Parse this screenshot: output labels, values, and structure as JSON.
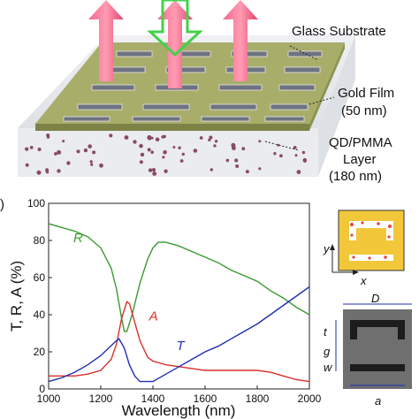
{
  "diagram": {
    "labels": {
      "glass": "Glass Substrate",
      "gold": "Gold Film",
      "gold_thickness": "(50 nm)",
      "qd_line1": "QD/PMMA",
      "qd_line2": "Layer",
      "qd_thickness": "(180 nm)"
    }
  },
  "panel_b_label": ")",
  "inset": {
    "axis_y": "y",
    "axis_x": "x",
    "dims": {
      "D": "D",
      "t": "t",
      "g": "g",
      "w": "w",
      "a": "a"
    }
  },
  "chart_data": {
    "type": "line",
    "xlabel": "Wavelength (nm)",
    "ylabel": "T, R, A (%)",
    "xlim": [
      1000,
      2000
    ],
    "ylim": [
      0,
      100
    ],
    "xticks": [
      1000,
      1200,
      1400,
      1600,
      1800,
      2000
    ],
    "yticks": [
      0,
      20,
      40,
      60,
      80,
      100
    ],
    "series": [
      {
        "name": "R",
        "color": "#3a9a2e",
        "x": [
          1000,
          1050,
          1100,
          1150,
          1200,
          1240,
          1260,
          1280,
          1290,
          1300,
          1320,
          1350,
          1380,
          1400,
          1420,
          1450,
          1500,
          1550,
          1600,
          1650,
          1700,
          1750,
          1800,
          1850,
          1900,
          1950,
          2000
        ],
        "y": [
          89,
          87,
          85,
          82,
          76,
          65,
          54,
          38,
          31,
          31,
          40,
          57,
          70,
          76,
          79,
          79,
          77,
          74,
          71,
          68,
          64,
          61,
          58,
          53,
          49,
          44,
          40
        ]
      },
      {
        "name": "A",
        "color": "#d9302a",
        "x": [
          1000,
          1050,
          1100,
          1150,
          1200,
          1240,
          1260,
          1280,
          1300,
          1310,
          1330,
          1350,
          1380,
          1400,
          1450,
          1500,
          1550,
          1600,
          1650,
          1700,
          1750,
          1800,
          1850,
          1900,
          1950,
          2000
        ],
        "y": [
          7,
          7,
          7,
          8,
          10,
          16,
          24,
          38,
          47,
          46,
          36,
          26,
          17,
          15,
          13,
          12,
          11,
          10,
          10,
          10,
          10,
          10,
          9,
          7,
          5,
          4
        ]
      },
      {
        "name": "T",
        "color": "#1f2fb0",
        "x": [
          1000,
          1050,
          1100,
          1150,
          1200,
          1230,
          1260,
          1270,
          1290,
          1310,
          1330,
          1350,
          1400,
          1450,
          1500,
          1550,
          1600,
          1650,
          1700,
          1750,
          1800,
          1850,
          1900,
          1950,
          2000
        ],
        "y": [
          4,
          6,
          9,
          13,
          18,
          22,
          26,
          27,
          22,
          13,
          7,
          4,
          4,
          8,
          12,
          16,
          20,
          23,
          27,
          31,
          35,
          40,
          45,
          50,
          55
        ]
      }
    ],
    "annotations": [
      {
        "text": "R",
        "x": 1095,
        "y": 79,
        "color": "#3a9a2e"
      },
      {
        "text": "A",
        "x": 1385,
        "y": 37,
        "color": "#d9302a"
      },
      {
        "text": "T",
        "x": 1490,
        "y": 21,
        "color": "#1f2fb0"
      }
    ],
    "grid": false
  }
}
